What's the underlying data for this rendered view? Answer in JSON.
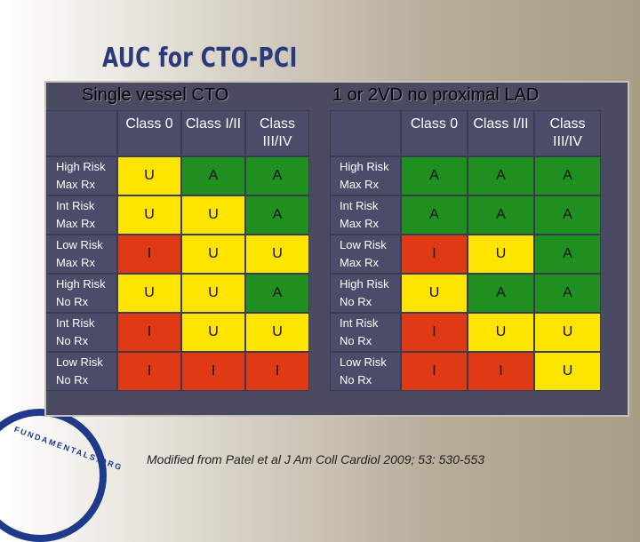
{
  "title": "AUC for CTO-PCI",
  "left_heading": "Single vessel CTO",
  "right_heading": "1 or 2VD no proximal LAD",
  "columns": [
    "Class 0",
    "Class I/II",
    "Class III/IV"
  ],
  "rows": [
    {
      "risk": "High Risk",
      "therapy": "Max Rx"
    },
    {
      "risk": "Int Risk",
      "therapy": "Max Rx"
    },
    {
      "risk": "Low Risk",
      "therapy": "Max Rx"
    },
    {
      "risk": "High Risk",
      "therapy": "No Rx"
    },
    {
      "risk": "Int Risk",
      "therapy": "No Rx"
    },
    {
      "risk": "Low Risk",
      "therapy": "No Rx"
    }
  ],
  "left_grid": [
    [
      "U",
      "A",
      "A"
    ],
    [
      "U",
      "U",
      "A"
    ],
    [
      "I",
      "U",
      "U"
    ],
    [
      "U",
      "U",
      "A"
    ],
    [
      "I",
      "U",
      "U"
    ],
    [
      "I",
      "I",
      "I"
    ]
  ],
  "right_grid": [
    [
      "A",
      "A",
      "A"
    ],
    [
      "A",
      "A",
      "A"
    ],
    [
      "I",
      "U",
      "A"
    ],
    [
      "U",
      "A",
      "A"
    ],
    [
      "I",
      "U",
      "U"
    ],
    [
      "I",
      "I",
      "U"
    ]
  ],
  "colors": {
    "A": "#1f8f1f",
    "U": "#ffe400",
    "I": "#e03a14"
  },
  "footer": "Modified from Patel et al J Am Coll Cardiol 2009; 53: 530-553",
  "logo_text": "FUNDAMENTALS.ORG"
}
